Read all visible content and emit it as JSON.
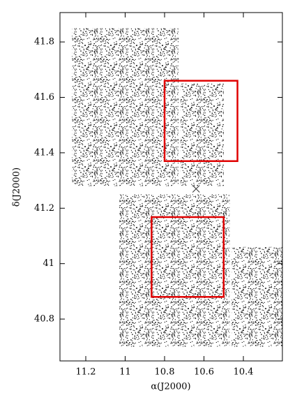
{
  "chart_data": {
    "type": "scatter",
    "xlabel": "α(J2000)",
    "ylabel": "δ(J2000)",
    "xlim": [
      11.331,
      10.202
    ],
    "ylim": [
      40.649,
      41.906
    ],
    "xticks": [
      11.2,
      11,
      10.8,
      10.6,
      10.4
    ],
    "yticks": [
      40.8,
      41,
      41.2,
      41.4,
      41.6,
      41.8
    ],
    "point_color": "#000000",
    "fields": [
      {
        "ra": [
          11.27,
          10.73
        ],
        "dec": [
          41.28,
          41.85
        ]
      },
      {
        "ra": [
          10.72,
          10.5
        ],
        "dec": [
          41.28,
          41.65
        ]
      },
      {
        "ra": [
          11.03,
          10.47
        ],
        "dec": [
          40.7,
          41.25
        ]
      },
      {
        "ra": [
          10.46,
          10.2
        ],
        "dec": [
          40.7,
          41.06
        ]
      }
    ],
    "box_color": "#e00000",
    "boxes": [
      {
        "ra": [
          10.8,
          10.43
        ],
        "dec": [
          41.37,
          41.66
        ]
      },
      {
        "ra": [
          10.866,
          10.5
        ],
        "dec": [
          40.88,
          41.168
        ]
      }
    ],
    "center": {
      "x": 10.64,
      "y": 41.27
    }
  }
}
